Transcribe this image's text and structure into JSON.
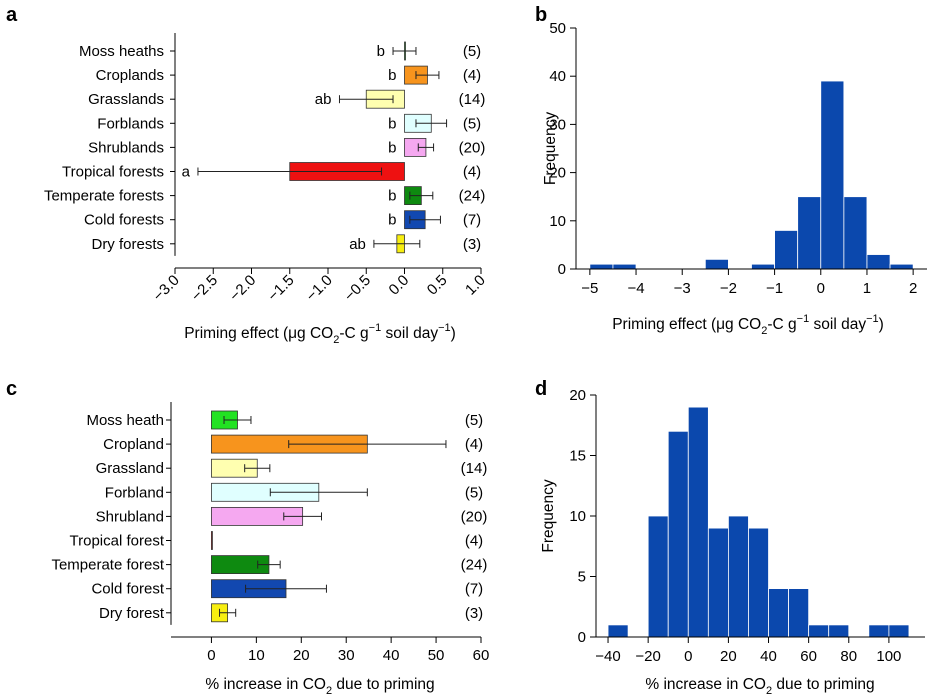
{
  "figure": {
    "panel_letters": [
      "a",
      "b",
      "c",
      "d"
    ]
  },
  "chart_data": [
    {
      "panel": "a",
      "type": "bar",
      "orientation": "horizontal",
      "categories": [
        "Moss heaths",
        "Croplands",
        "Grasslands",
        "Forblands",
        "Shrublands",
        "Tropical forests",
        "Temperate forests",
        "Cold forests",
        "Dry forests"
      ],
      "values": [
        0.0,
        0.3,
        -0.5,
        0.35,
        0.28,
        -1.5,
        0.22,
        0.27,
        -0.1
      ],
      "error": [
        0.15,
        0.15,
        0.35,
        0.2,
        0.1,
        1.2,
        0.15,
        0.2,
        0.3
      ],
      "letters": [
        "b",
        "b",
        "ab",
        "b",
        "b",
        "a",
        "b",
        "b",
        "ab"
      ],
      "n_labels": [
        "(5)",
        "(4)",
        "(14)",
        "(5)",
        "(20)",
        "(4)",
        "(24)",
        "(7)",
        "(3)"
      ],
      "colors": [
        "#22c322",
        "#f7941d",
        "#ffffb0",
        "#e0ffff",
        "#f5a8f0",
        "#ee1111",
        "#0e8a10",
        "#1248b0",
        "#f7ee10"
      ],
      "xlim": [
        -3.0,
        1.0
      ],
      "xticks": [
        -3.0,
        -2.5,
        -2.0,
        -1.5,
        -1.0,
        -0.5,
        0.0,
        0.5,
        1.0
      ],
      "xtick_labels": [
        "−3.0",
        "−2.5",
        "−2.0",
        "−1.5",
        "−1.0",
        "−0.5",
        "0.0",
        "0.5",
        "1.0"
      ],
      "xlabel": {
        "pre": "Priming effect (μg CO",
        "sub": "2",
        "mid": "-C g",
        "sup": "−1",
        "post": " soil day",
        "sup2": "−1",
        "end": ")"
      }
    },
    {
      "panel": "b",
      "type": "bar",
      "subtype": "histogram",
      "bin_edges": [
        -5.0,
        -4.5,
        -4.0,
        -3.5,
        -3.0,
        -2.5,
        -2.0,
        -1.5,
        -1.0,
        -0.5,
        0.0,
        0.5,
        1.0,
        1.5,
        2.0
      ],
      "counts": [
        1,
        1,
        0,
        0,
        0,
        2,
        0,
        1,
        8,
        15,
        39,
        15,
        3,
        1
      ],
      "color": "#0b48ad",
      "xlim": [
        -5.3,
        2.3
      ],
      "ylim": [
        0,
        50
      ],
      "xticks": [
        -5,
        -4,
        -3,
        -2,
        -1,
        0,
        1,
        2
      ],
      "xtick_labels": [
        "−5",
        "−4",
        "−3",
        "−2",
        "−1",
        "0",
        "1",
        "2"
      ],
      "yticks": [
        0,
        10,
        20,
        30,
        40,
        50
      ],
      "ylabel": "Frequency",
      "xlabel": {
        "pre": "Priming effect (μg CO",
        "sub": "2",
        "mid": "-C g",
        "sup": "−1",
        "post": " soil day",
        "sup2": "−1",
        "end": ")"
      }
    },
    {
      "panel": "c",
      "type": "bar",
      "orientation": "horizontal",
      "categories": [
        "Moss heath",
        "Cropland",
        "Grassland",
        "Forbland",
        "Shrubland",
        "Tropical forest",
        "Temperate forest",
        "Cold forest",
        "Dry forest"
      ],
      "values": [
        5.8,
        34.7,
        10.2,
        23.9,
        20.3,
        0.2,
        12.8,
        16.6,
        3.6
      ],
      "error": [
        3.0,
        17.5,
        2.8,
        10.8,
        4.2,
        0,
        2.5,
        9.0,
        1.8
      ],
      "n_labels": [
        "(5)",
        "(4)",
        "(14)",
        "(5)",
        "(20)",
        "(4)",
        "(24)",
        "(7)",
        "(3)"
      ],
      "colors": [
        "#22e222",
        "#f7941d",
        "#ffffb0",
        "#e0ffff",
        "#f5a8f0",
        "#ee1111",
        "#0e8a10",
        "#1248b0",
        "#f7ee10"
      ],
      "xlim": [
        -9,
        60
      ],
      "xticks": [
        0,
        10,
        20,
        30,
        40,
        50,
        60
      ],
      "xlabel": {
        "pre": "% increase in CO",
        "sub": "2",
        "post": " due to priming"
      }
    },
    {
      "panel": "d",
      "type": "bar",
      "subtype": "histogram",
      "bin_edges": [
        -40,
        -30,
        -20,
        -10,
        0,
        10,
        20,
        30,
        40,
        50,
        60,
        70,
        80,
        90,
        100,
        110
      ],
      "counts": [
        1,
        0,
        10,
        17,
        19,
        9,
        10,
        9,
        4,
        4,
        1,
        1,
        0,
        1,
        1
      ],
      "color": "#0b48ad",
      "xlim": [
        -46,
        118
      ],
      "ylim": [
        0,
        20
      ],
      "xticks": [
        -40,
        -20,
        0,
        20,
        40,
        60,
        80,
        100
      ],
      "xtick_labels": [
        "−40",
        "−20",
        "0",
        "20",
        "40",
        "60",
        "80",
        "100"
      ],
      "yticks": [
        0,
        5,
        10,
        15,
        20
      ],
      "ylabel": "Frequency",
      "xlabel": {
        "pre": "% increase in CO",
        "sub": "2",
        "post": " due to priming"
      }
    }
  ]
}
